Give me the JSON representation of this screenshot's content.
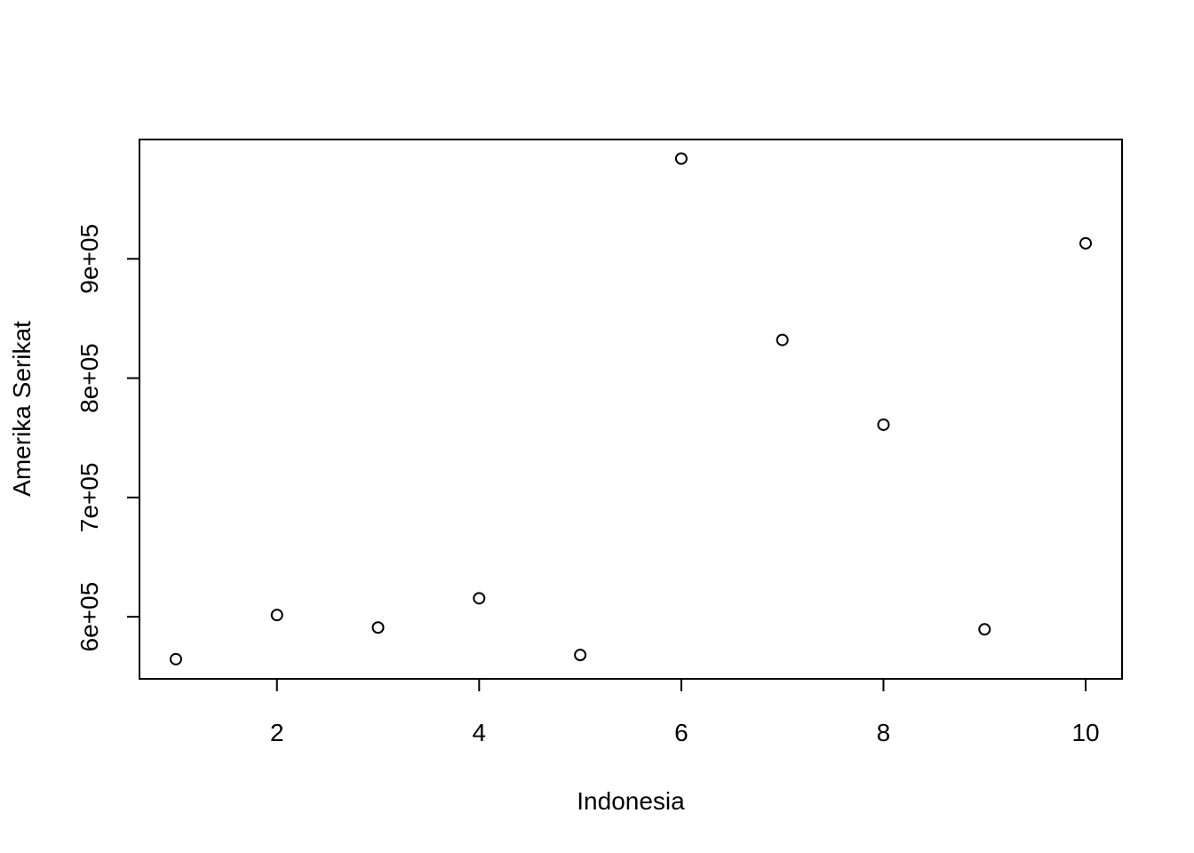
{
  "chart_data": {
    "type": "scatter",
    "xlabel": "Indonesia",
    "ylabel": "Amerika Serikat",
    "xlim": [
      0.64,
      10.36
    ],
    "ylim": [
      548000,
      1000000
    ],
    "x_ticks": [
      2,
      4,
      6,
      8,
      10
    ],
    "y_ticks": [
      600000,
      700000,
      800000,
      900000
    ],
    "x_tick_labels": [
      "2",
      "4",
      "6",
      "8",
      "10"
    ],
    "y_tick_labels": [
      "6e+05",
      "7e+05",
      "8e+05",
      "9e+05"
    ],
    "grid": false,
    "legend": "none",
    "marker": "open-circle",
    "x": [
      1,
      2,
      3,
      4,
      5,
      6,
      7,
      8,
      9,
      10
    ],
    "y": [
      564500,
      601500,
      591000,
      615500,
      568000,
      984000,
      832000,
      761000,
      589500,
      913000
    ]
  }
}
